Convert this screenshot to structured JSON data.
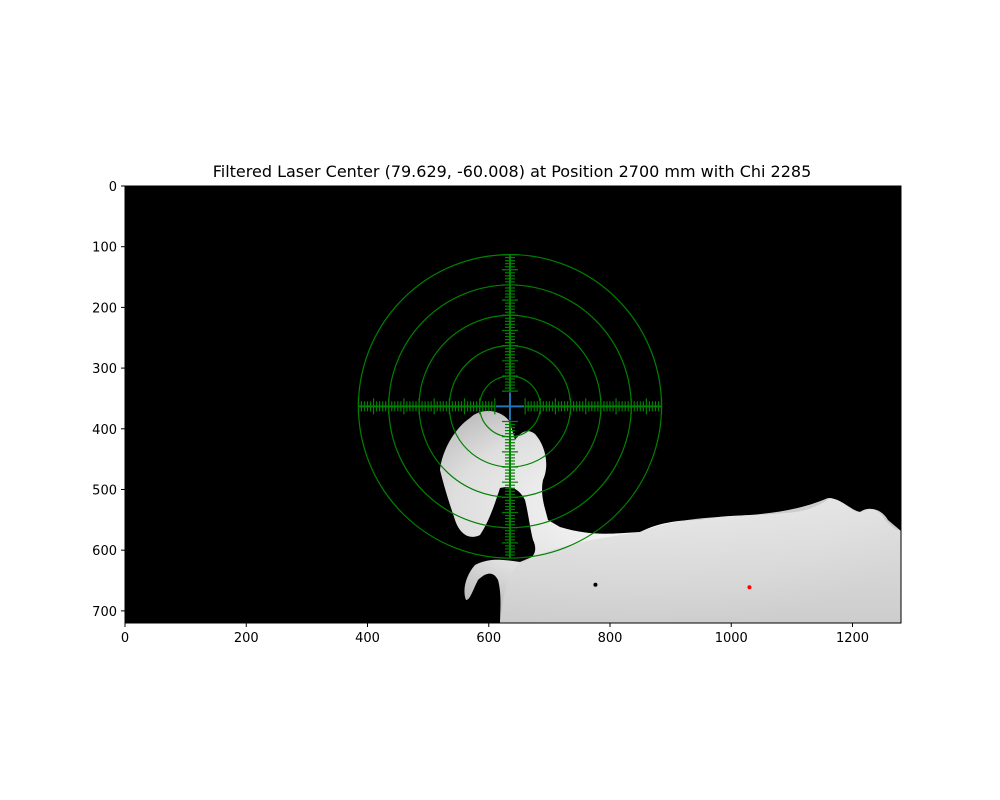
{
  "chart_data": {
    "type": "image",
    "title": "Filtered Laser Center (79.629, -60.008) at Position 2700 mm with Chi 2285",
    "xlabel": "",
    "ylabel": "",
    "xlim": [
      0,
      1280
    ],
    "ylim": [
      720,
      0
    ],
    "x_ticks": [
      "0",
      "200",
      "400",
      "600",
      "800",
      "1000",
      "1200"
    ],
    "y_ticks": [
      "0",
      "100",
      "200",
      "300",
      "400",
      "500",
      "600",
      "700"
    ],
    "image_background": "black",
    "target": {
      "center": [
        635,
        363
      ],
      "ring_radii": [
        50,
        100,
        150,
        200,
        250
      ],
      "crosshair_extent": [
        -250,
        250
      ],
      "center_gap": 25,
      "tick_spacing": 5,
      "color": "#008000"
    },
    "laser_center_marker": {
      "x": 635,
      "y": 363,
      "color": "#1f77b4"
    },
    "points": [
      {
        "x": 1030,
        "y": 661,
        "color": "#ff0000"
      },
      {
        "x": 776,
        "y": 657,
        "color": "#000000"
      }
    ]
  }
}
